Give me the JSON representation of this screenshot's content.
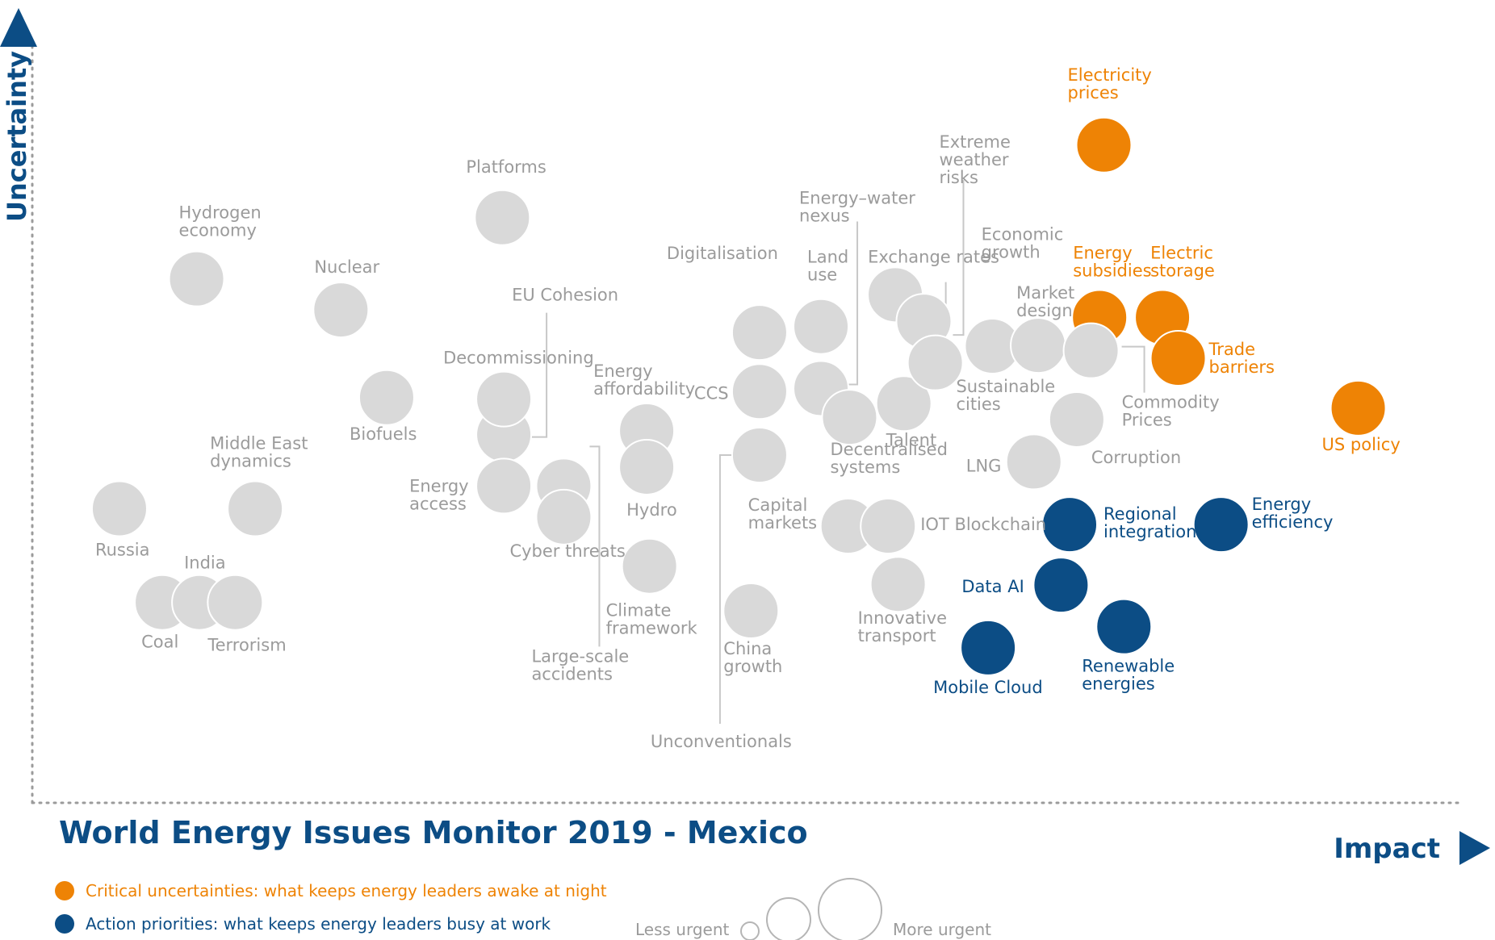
{
  "title": "World Energy Issues Monitor 2019 - Mexico",
  "colors": {
    "grey": "#d9d9d9",
    "orange": "#ee8305",
    "blue": "#0c4d85",
    "axis": "#9b9b9b",
    "label_grey": "#9b9b9b"
  },
  "legend": {
    "critical": "Critical uncertainties: what keeps energy leaders awake at night",
    "action": "Action priorities: what keeps energy leaders busy at work",
    "less_urgent": "Less urgent",
    "more_urgent": "More urgent"
  },
  "chart_data": {
    "type": "scatter",
    "title": "World Energy Issues Monitor 2019 - Mexico",
    "xlabel": "Impact",
    "ylabel": "Uncertainty",
    "xlim": [
      0,
      1000
    ],
    "ylim": [
      0,
      1000
    ],
    "grid": false,
    "legend_position": "bottom-left",
    "points": [
      {
        "name": "Electricity prices",
        "x": 750,
        "y": 870,
        "group": "critical"
      },
      {
        "name": "Energy subsidies",
        "x": 747,
        "y": 642,
        "group": "critical"
      },
      {
        "name": "Electric storage",
        "x": 791,
        "y": 642,
        "group": "critical"
      },
      {
        "name": "Trade barriers",
        "x": 802,
        "y": 588,
        "group": "critical"
      },
      {
        "name": "US policy",
        "x": 928,
        "y": 522,
        "group": "critical"
      },
      {
        "name": "Regional integration",
        "x": 726,
        "y": 368,
        "group": "action"
      },
      {
        "name": "Energy efficiency",
        "x": 832,
        "y": 368,
        "group": "action"
      },
      {
        "name": "Data AI",
        "x": 720,
        "y": 288,
        "group": "action"
      },
      {
        "name": "Renewable energies",
        "x": 764,
        "y": 233,
        "group": "action"
      },
      {
        "name": "Mobile Cloud",
        "x": 669,
        "y": 205,
        "group": "action"
      },
      {
        "name": "Platforms",
        "x": 329,
        "y": 774,
        "group": "other"
      },
      {
        "name": "Hydrogen economy",
        "x": 115,
        "y": 693,
        "group": "other"
      },
      {
        "name": "Nuclear",
        "x": 216,
        "y": 652,
        "group": "other"
      },
      {
        "name": "EU Cohesion",
        "x": 330,
        "y": 487,
        "group": "other"
      },
      {
        "name": "Decommissioning",
        "x": 330,
        "y": 534,
        "group": "other"
      },
      {
        "name": "Biofuels",
        "x": 248,
        "y": 536,
        "group": "other"
      },
      {
        "name": "Energy access",
        "x": 330,
        "y": 419,
        "group": "other"
      },
      {
        "name": "Energy affordability",
        "x": 430,
        "y": 492,
        "group": "other"
      },
      {
        "name": "Hydro",
        "x": 430,
        "y": 444,
        "group": "other"
      },
      {
        "name": "Large-scale accidents",
        "x": 372,
        "y": 419,
        "group": "other"
      },
      {
        "name": "Cyber threats",
        "x": 372,
        "y": 378,
        "group": "other"
      },
      {
        "name": "Climate framework",
        "x": 432,
        "y": 313,
        "group": "other"
      },
      {
        "name": "Middle East dynamics",
        "x": 156,
        "y": 389,
        "group": "other"
      },
      {
        "name": "Russia",
        "x": 61,
        "y": 389,
        "group": "other"
      },
      {
        "name": "Coal",
        "x": 91,
        "y": 265,
        "group": "other"
      },
      {
        "name": "India",
        "x": 117,
        "y": 265,
        "group": "other"
      },
      {
        "name": "Terrorism",
        "x": 142,
        "y": 265,
        "group": "other"
      },
      {
        "name": "Digitalisation",
        "x": 509,
        "y": 622,
        "group": "other"
      },
      {
        "name": "CCS",
        "x": 509,
        "y": 544,
        "group": "other"
      },
      {
        "name": "Unconventionals",
        "x": 509,
        "y": 460,
        "group": "other"
      },
      {
        "name": "China growth",
        "x": 503,
        "y": 254,
        "group": "other"
      },
      {
        "name": "Land use",
        "x": 552,
        "y": 630,
        "group": "other"
      },
      {
        "name": "Energy–water nexus",
        "x": 552,
        "y": 548,
        "group": "other"
      },
      {
        "name": "Decentralised systems",
        "x": 572,
        "y": 510,
        "group": "other"
      },
      {
        "name": "Capital markets",
        "x": 571,
        "y": 366,
        "group": "other"
      },
      {
        "name": "IOT Blockchain",
        "x": 599,
        "y": 366,
        "group": "other"
      },
      {
        "name": "Innovative transport",
        "x": 606,
        "y": 289,
        "group": "other"
      },
      {
        "name": "Exchange rates",
        "x": 604,
        "y": 672,
        "group": "other"
      },
      {
        "name": "Extreme weather risks",
        "x": 624,
        "y": 637,
        "group": "other"
      },
      {
        "name": "Talent",
        "x": 610,
        "y": 528,
        "group": "other"
      },
      {
        "name": "Economic growth",
        "x": 632,
        "y": 582,
        "group": "other"
      },
      {
        "name": "Sustainable cities",
        "x": 672,
        "y": 604,
        "group": "other"
      },
      {
        "name": "Market design",
        "x": 704,
        "y": 605,
        "group": "other"
      },
      {
        "name": "Commodity Prices",
        "x": 741,
        "y": 598,
        "group": "other"
      },
      {
        "name": "Corruption",
        "x": 731,
        "y": 507,
        "group": "other"
      },
      {
        "name": "LNG",
        "x": 701,
        "y": 451,
        "group": "other"
      }
    ]
  }
}
